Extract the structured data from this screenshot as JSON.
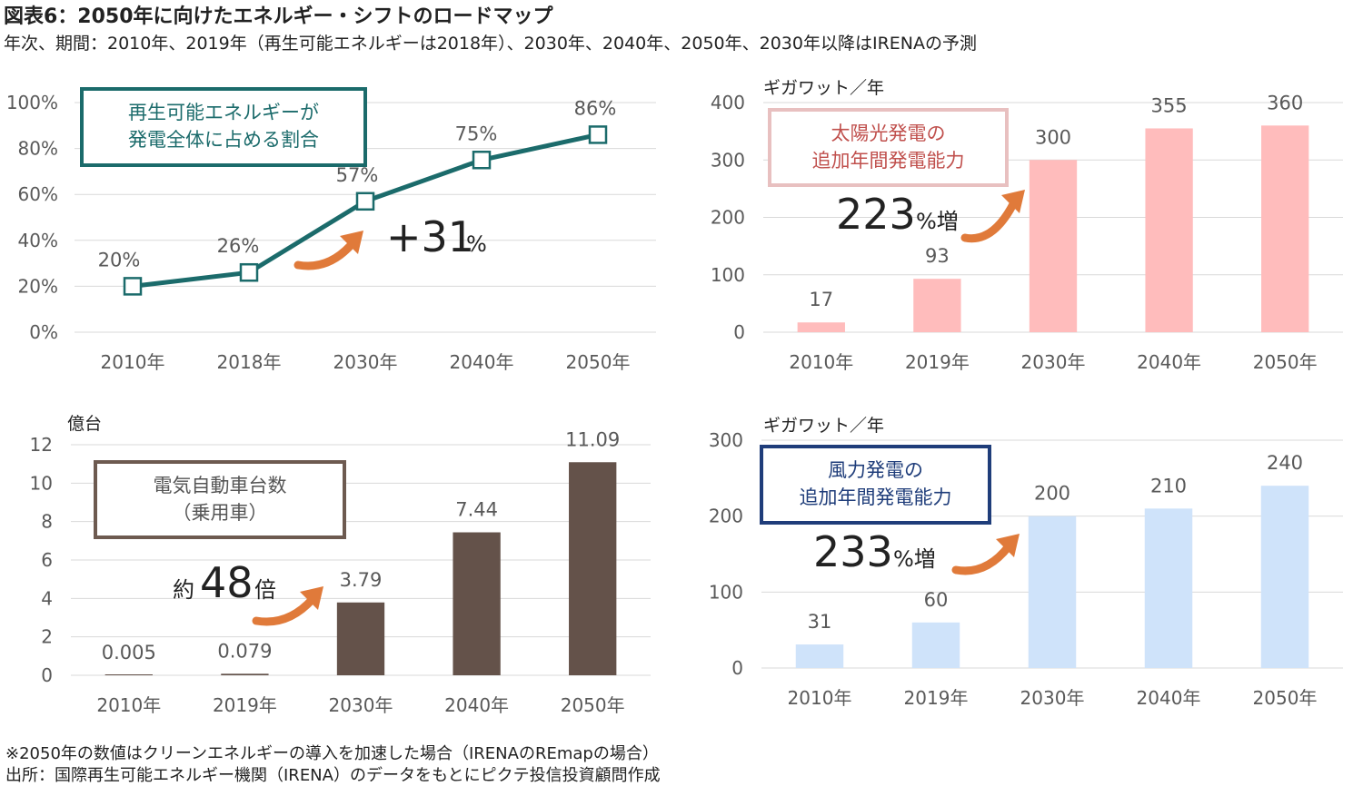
{
  "title": "図表6：2050年に向けたエネルギー・シフトのロードマップ",
  "subtitle": "年次、期間：2010年、2019年（再生可能エネルギーは2018年）、2030年、2040年、2050年、2030年以降はIRENAの予測",
  "notes": {
    "line1": "※2050年の数値はクリーンエネルギーの導入を加速した場合（IRENAのREmapの場合）",
    "line2": "出所：国際再生可能エネルギー機関（IRENA）のデータをもとにピクテ投信投資顧問作成"
  },
  "colors": {
    "renewable_line": "#1b6b6b",
    "solar_bar": "#ffbcbc",
    "solar_box": "#e8c0c0",
    "solar_box_text": "#c0504d",
    "ev_bar": "#64524a",
    "ev_box": "#6d5a50",
    "wind_bar": "#cfe3fa",
    "wind_box": "#1f3d7a",
    "arrow": "#e07a3a",
    "grid": "#d9d9d9"
  },
  "chart_data": [
    {
      "id": "renewable",
      "type": "line",
      "box_lines": [
        "再生可能エネルギーが",
        "発電全体に占める割合"
      ],
      "categories": [
        "2010年",
        "2018年",
        "2030年",
        "2040年",
        "2050年"
      ],
      "values": [
        20,
        26,
        57,
        75,
        86
      ],
      "data_labels": [
        "20%",
        "26%",
        "57%",
        "75%",
        "86%"
      ],
      "ylim": [
        0,
        100
      ],
      "yticks": [
        "0%",
        "20%",
        "40%",
        "60%",
        "80%",
        "100%"
      ],
      "ylabel": "",
      "annotation": {
        "main": "+31",
        "suffix": "%"
      },
      "grid": true
    },
    {
      "id": "solar",
      "type": "bar",
      "box_lines": [
        "太陽光発電の",
        "追加年間発電能力"
      ],
      "unit": "ギガワット／年",
      "categories": [
        "2010年",
        "2019年",
        "2030年",
        "2040年",
        "2050年"
      ],
      "values": [
        17,
        93,
        300,
        355,
        360
      ],
      "data_labels": [
        "17",
        "93",
        "300",
        "355",
        "360"
      ],
      "ylim": [
        0,
        400
      ],
      "yticks": [
        "0",
        "100",
        "200",
        "300",
        "400"
      ],
      "annotation": {
        "main": "223",
        "suffix": "%増"
      },
      "grid": true
    },
    {
      "id": "ev",
      "type": "bar",
      "box_lines": [
        "電気自動車台数",
        "（乗用車）"
      ],
      "unit": "億台",
      "categories": [
        "2010年",
        "2019年",
        "2030年",
        "2040年",
        "2050年"
      ],
      "values": [
        0.005,
        0.079,
        3.79,
        7.44,
        11.09
      ],
      "data_labels": [
        "0.005",
        "0.079",
        "3.79",
        "7.44",
        "11.09"
      ],
      "ylim": [
        0,
        12
      ],
      "yticks": [
        "0",
        "2",
        "4",
        "6",
        "8",
        "10",
        "12"
      ],
      "annotation": {
        "prefix": "約",
        "main": "48",
        "suffix": "倍"
      },
      "grid": true
    },
    {
      "id": "wind",
      "type": "bar",
      "box_lines": [
        "風力発電の",
        "追加年間発電能力"
      ],
      "unit": "ギガワット／年",
      "categories": [
        "2010年",
        "2019年",
        "2030年",
        "2040年",
        "2050年"
      ],
      "values": [
        31,
        60,
        200,
        210,
        240
      ],
      "data_labels": [
        "31",
        "60",
        "200",
        "210",
        "240"
      ],
      "ylim": [
        0,
        300
      ],
      "yticks": [
        "0",
        "100",
        "200",
        "300"
      ],
      "annotation": {
        "main": "233",
        "suffix": "%増"
      },
      "grid": true
    }
  ]
}
